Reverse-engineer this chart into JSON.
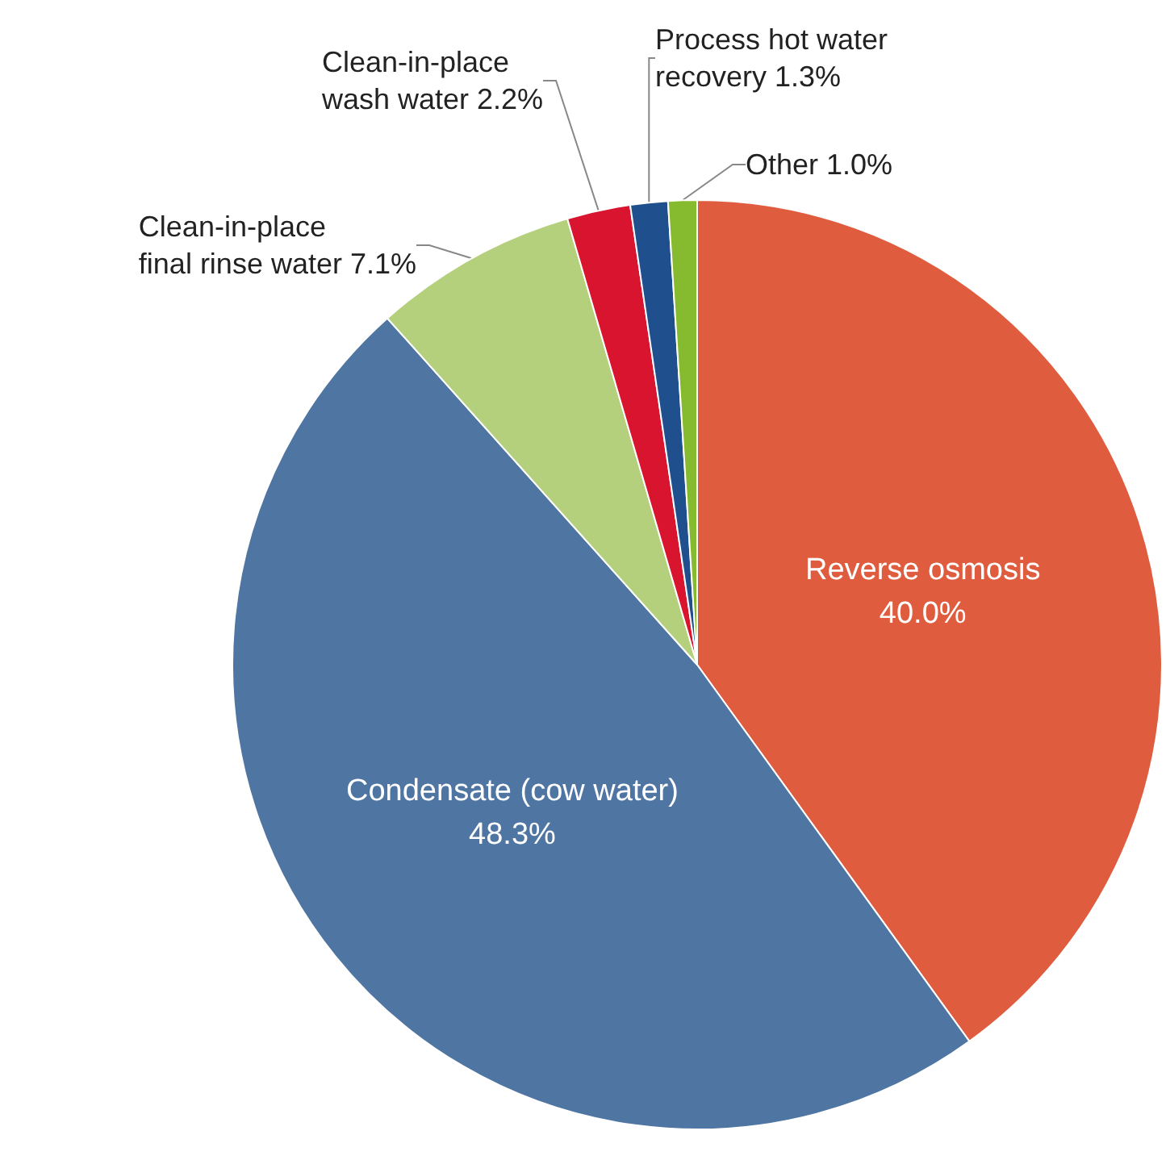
{
  "chart_data": {
    "type": "pie",
    "categories": [
      "Reverse osmosis",
      "Condensate (cow water)",
      "Clean-in-place\nfinal rinse water",
      "Clean-in-place\nwash water",
      "Process hot water\nrecovery",
      "Other"
    ],
    "values": [
      40.0,
      48.3,
      7.1,
      2.2,
      1.3,
      1.0
    ],
    "value_labels": [
      "40.0%",
      "48.3%",
      "7.1%",
      "2.2%",
      "1.3%",
      "1.0%"
    ],
    "colors": [
      "#e05c3e",
      "#4f75a2",
      "#b4d07c",
      "#d8142e",
      "#1f4f8c",
      "#86bb2f"
    ]
  }
}
